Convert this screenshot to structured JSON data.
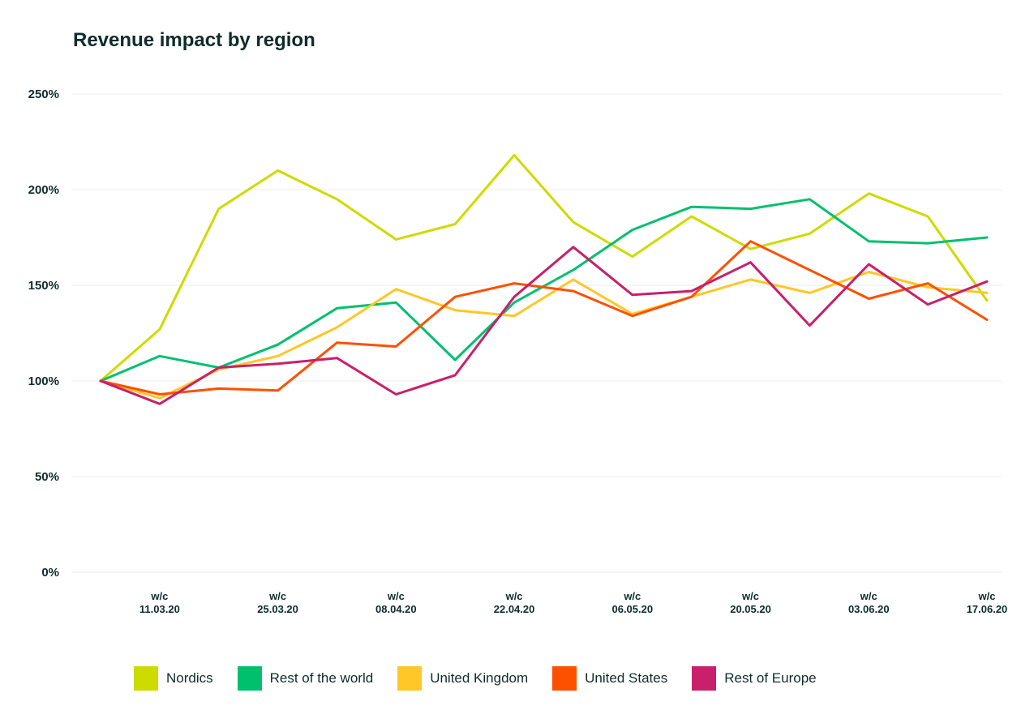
{
  "chart_data": {
    "type": "line",
    "title": "Revenue impact by region",
    "xlabel": "",
    "ylabel": "",
    "ylim": [
      0,
      250
    ],
    "yticks": [
      0,
      50,
      100,
      150,
      200,
      250
    ],
    "ytick_labels": [
      "0%",
      "50%",
      "100%",
      "150%",
      "200%",
      "250%"
    ],
    "x_count": 16,
    "xtick_labels": [
      {
        "index": 1,
        "line1": "w/c",
        "line2": "11.03.20"
      },
      {
        "index": 3,
        "line1": "w/c",
        "line2": "25.03.20"
      },
      {
        "index": 5,
        "line1": "w/c",
        "line2": "08.04.20"
      },
      {
        "index": 7,
        "line1": "w/c",
        "line2": "22.04.20"
      },
      {
        "index": 9,
        "line1": "w/c",
        "line2": "06.05.20"
      },
      {
        "index": 11,
        "line1": "w/c",
        "line2": "20.05.20"
      },
      {
        "index": 13,
        "line1": "w/c",
        "line2": "03.06.20"
      },
      {
        "index": 15,
        "line1": "w/c",
        "line2": "17.06.20"
      }
    ],
    "grid": true,
    "legend_position": "bottom",
    "series": [
      {
        "name": "Nordics",
        "color": "#cedb00",
        "values": [
          100,
          127,
          190,
          210,
          195,
          174,
          182,
          218,
          183,
          165,
          186,
          169,
          177,
          198,
          186,
          142
        ]
      },
      {
        "name": "Rest of the world",
        "color": "#00c06e",
        "values": [
          100,
          113,
          107,
          119,
          138,
          141,
          111,
          141,
          158,
          179,
          191,
          190,
          195,
          173,
          172,
          175
        ]
      },
      {
        "name": "United Kingdom",
        "color": "#ffc727",
        "values": [
          100,
          91,
          106,
          113,
          128,
          148,
          137,
          134,
          153,
          135,
          144,
          153,
          146,
          157,
          149,
          146
        ]
      },
      {
        "name": "United States",
        "color": "#ff5000",
        "values": [
          100,
          93,
          96,
          95,
          120,
          118,
          144,
          151,
          147,
          134,
          144,
          173,
          158,
          143,
          151,
          132
        ]
      },
      {
        "name": "Rest of Europe",
        "color": "#c8206b",
        "values": [
          100,
          88,
          107,
          109,
          112,
          93,
          103,
          144,
          170,
          145,
          147,
          162,
          129,
          161,
          140,
          152
        ]
      }
    ]
  }
}
